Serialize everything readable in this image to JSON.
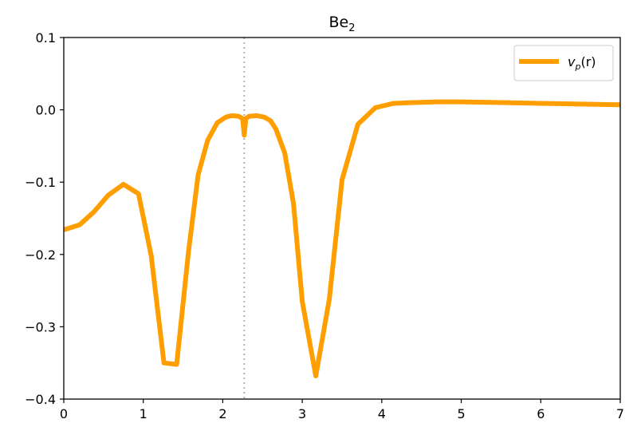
{
  "chart_data": {
    "type": "line",
    "title": "Be",
    "title_subscript": "2",
    "xlabel": "",
    "ylabel": "",
    "xlim": [
      0,
      7
    ],
    "ylim": [
      -0.4,
      0.1
    ],
    "xticks": [
      0,
      1,
      2,
      3,
      4,
      5,
      6,
      7
    ],
    "yticks": [
      0.1,
      0.0,
      -0.1,
      -0.2,
      -0.3,
      -0.4
    ],
    "ytick_labels": [
      "0.1",
      "0.0",
      "−0.1",
      "−0.2",
      "−0.3",
      "−0.4"
    ],
    "xtick_labels": [
      "0",
      "1",
      "2",
      "3",
      "4",
      "5",
      "6",
      "7"
    ],
    "grid": false,
    "legend_position": "top-right",
    "vline": {
      "x": 2.27,
      "color": "#b0b0b0",
      "style": "dotted"
    },
    "series": [
      {
        "name": "v_p(r)",
        "legend_main": "v",
        "legend_sub": "p",
        "legend_rest": "(r)",
        "color": "#ff9e00",
        "x": [
          0.0,
          0.2,
          0.38,
          0.56,
          0.75,
          0.94,
          1.1,
          1.26,
          1.42,
          1.57,
          1.69,
          1.81,
          1.93,
          2.04,
          2.12,
          2.2,
          2.25,
          2.27,
          2.29,
          2.33,
          2.42,
          2.52,
          2.6,
          2.67,
          2.78,
          2.89,
          3.0,
          3.17,
          3.34,
          3.5,
          3.7,
          3.92,
          4.15,
          4.4,
          4.7,
          5.0,
          5.5,
          6.0,
          6.5,
          7.0
        ],
        "y": [
          -0.166,
          -0.159,
          -0.141,
          -0.118,
          -0.103,
          -0.116,
          -0.202,
          -0.35,
          -0.352,
          -0.195,
          -0.09,
          -0.042,
          -0.018,
          -0.01,
          -0.008,
          -0.009,
          -0.012,
          -0.035,
          -0.012,
          -0.009,
          -0.008,
          -0.01,
          -0.015,
          -0.027,
          -0.06,
          -0.13,
          -0.265,
          -0.368,
          -0.262,
          -0.097,
          -0.02,
          0.003,
          0.009,
          0.01,
          0.011,
          0.011,
          0.01,
          0.009,
          0.008,
          0.007
        ]
      }
    ]
  }
}
